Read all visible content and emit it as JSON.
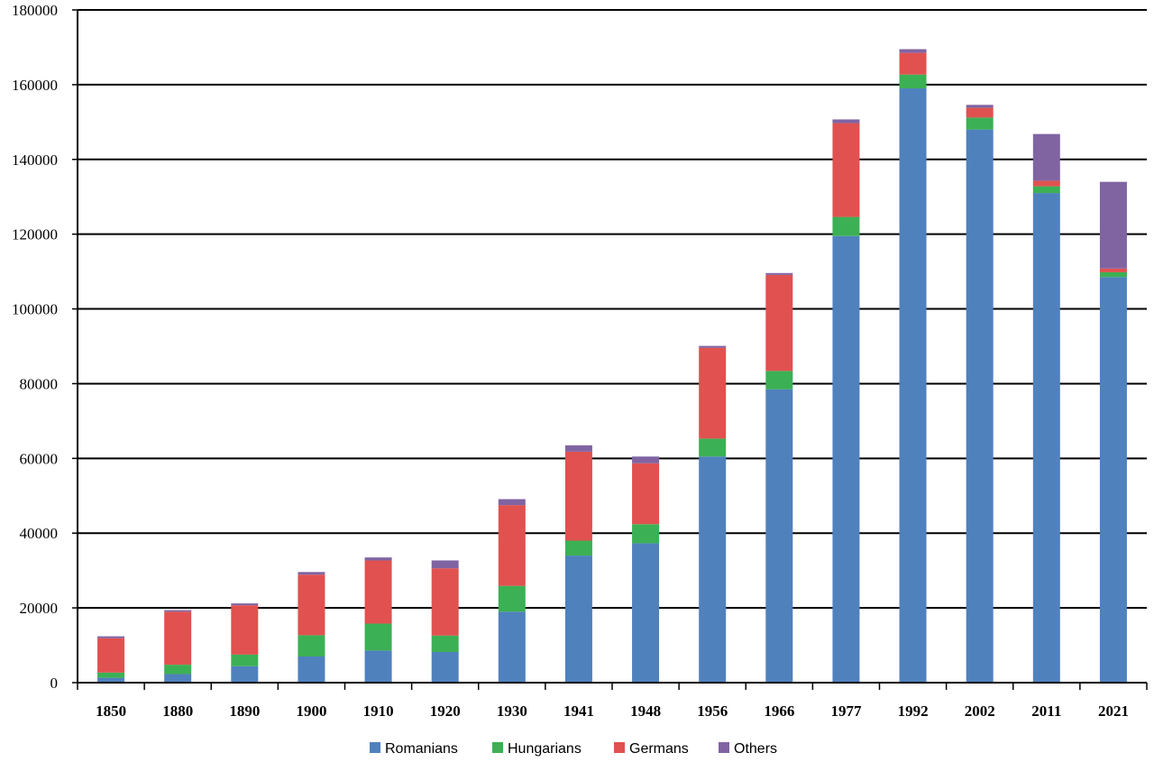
{
  "chart_data": {
    "type": "bar",
    "stacked": true,
    "title": "",
    "xlabel": "",
    "ylabel": "",
    "ylim": [
      0,
      180000
    ],
    "yticks": [
      0,
      20000,
      40000,
      60000,
      80000,
      100000,
      120000,
      140000,
      160000,
      180000
    ],
    "ytick_labels": [
      "0",
      "20000",
      "40000",
      "60000",
      "80000",
      "100000",
      "120000",
      "140000",
      "160000",
      "180000"
    ],
    "grid": true,
    "legend_position": "bottom-center",
    "categories": [
      "1850",
      "1880",
      "1890",
      "1900",
      "1910",
      "1920",
      "1930",
      "1941",
      "1948",
      "1956",
      "1966",
      "1977",
      "1992",
      "2002",
      "2011",
      "2021"
    ],
    "series": [
      {
        "name": "Romanians",
        "color": "#4f81bd",
        "values": [
          1300,
          2300,
          4400,
          7000,
          8600,
          8200,
          19000,
          34000,
          37300,
          60500,
          78500,
          119500,
          159000,
          148000,
          131000,
          108500
        ]
      },
      {
        "name": "Hungarians",
        "color": "#3cb054",
        "values": [
          1400,
          2500,
          3100,
          5700,
          7200,
          4400,
          6900,
          4000,
          5100,
          4800,
          4900,
          5100,
          3700,
          3200,
          1800,
          1300
        ]
      },
      {
        "name": "Germans",
        "color": "#e0514f",
        "values": [
          9200,
          14200,
          13200,
          16200,
          16900,
          18000,
          21600,
          23800,
          16300,
          24300,
          25700,
          25100,
          5800,
          2600,
          1500,
          1000
        ]
      },
      {
        "name": "Others",
        "color": "#8064a2",
        "values": [
          500,
          400,
          500,
          700,
          800,
          2100,
          1600,
          1700,
          1800,
          500,
          500,
          1000,
          1000,
          800,
          12500,
          23200
        ]
      }
    ]
  }
}
